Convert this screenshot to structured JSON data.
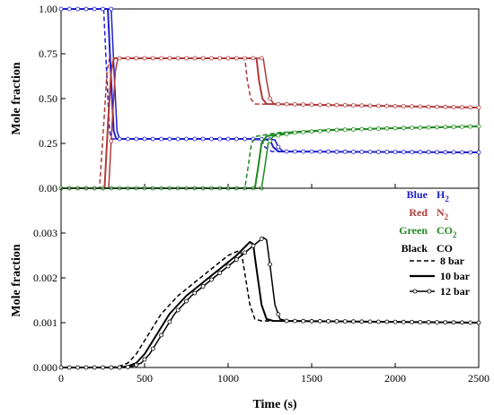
{
  "chart_data": {
    "type": "line",
    "xlabel": "Time (s)",
    "xlim": [
      0,
      2500
    ],
    "x_ticks": [
      "0",
      "500",
      "1000",
      "1500",
      "2000",
      "2500"
    ],
    "panels": [
      {
        "name": "top",
        "ylabel": "Mole fraction",
        "ylim": [
          0,
          1
        ],
        "y_ticks": [
          "0.00",
          "0.25",
          "0.50",
          "0.75",
          "1.00"
        ],
        "series": [
          {
            "gas": "H2",
            "pressure": "8 bar",
            "x": [
              0,
              255,
              275,
              290,
              300,
              1100,
              1200,
              1220,
              1260,
              2500
            ],
            "y": [
              1.0,
              1.0,
              0.6,
              0.32,
              0.275,
              0.275,
              0.27,
              0.23,
              0.205,
              0.2
            ]
          },
          {
            "gas": "H2",
            "pressure": "10 bar",
            "x": [
              0,
              280,
              300,
              315,
              330,
              1150,
              1250,
              1270,
              1300,
              2500
            ],
            "y": [
              1.0,
              1.0,
              0.6,
              0.32,
              0.275,
              0.275,
              0.27,
              0.23,
              0.205,
              0.2
            ]
          },
          {
            "gas": "H2",
            "pressure": "12 bar",
            "x": [
              0,
              300,
              320,
              335,
              350,
              1190,
              1280,
              1300,
              1330,
              2500
            ],
            "y": [
              1.0,
              1.0,
              0.6,
              0.32,
              0.275,
              0.275,
              0.27,
              0.23,
              0.205,
              0.2
            ]
          },
          {
            "gas": "N2",
            "pressure": "8 bar",
            "x": [
              0,
              230,
              255,
              275,
              290,
              1100,
              1115,
              1135,
              1160,
              2500
            ],
            "y": [
              0,
              0,
              0.35,
              0.65,
              0.725,
              0.725,
              0.6,
              0.5,
              0.47,
              0.45
            ]
          },
          {
            "gas": "N2",
            "pressure": "10 bar",
            "x": [
              0,
              260,
              280,
              300,
              315,
              1170,
              1185,
              1205,
              1230,
              2500
            ],
            "y": [
              0,
              0,
              0.35,
              0.65,
              0.725,
              0.725,
              0.6,
              0.5,
              0.47,
              0.45
            ]
          },
          {
            "gas": "N2",
            "pressure": "12 bar",
            "x": [
              0,
              285,
              305,
              325,
              340,
              1210,
              1230,
              1250,
              1275,
              2500
            ],
            "y": [
              0,
              0,
              0.35,
              0.65,
              0.725,
              0.725,
              0.6,
              0.5,
              0.47,
              0.45
            ]
          },
          {
            "gas": "CO2",
            "pressure": "8 bar",
            "x": [
              0,
              1100,
              1120,
              1140,
              1170,
              1300,
              1600,
              2000,
              2500
            ],
            "y": [
              0,
              0,
              0.12,
              0.25,
              0.29,
              0.31,
              0.325,
              0.335,
              0.345
            ]
          },
          {
            "gas": "CO2",
            "pressure": "10 bar",
            "x": [
              0,
              1160,
              1180,
              1200,
              1230,
              1350,
              1600,
              2000,
              2500
            ],
            "y": [
              0,
              0,
              0.12,
              0.25,
              0.29,
              0.31,
              0.325,
              0.335,
              0.345
            ]
          },
          {
            "gas": "CO2",
            "pressure": "12 bar",
            "x": [
              0,
              1200,
              1220,
              1240,
              1270,
              1400,
              1650,
              2000,
              2500
            ],
            "y": [
              0,
              0,
              0.12,
              0.25,
              0.29,
              0.31,
              0.325,
              0.335,
              0.345
            ]
          }
        ]
      },
      {
        "name": "bottom",
        "ylabel": "Mole fraction",
        "ylim": [
          0,
          0.004
        ],
        "y_ticks": [
          "0.000",
          "0.001",
          "0.002",
          "0.003"
        ],
        "series": [
          {
            "gas": "CO",
            "pressure": "8 bar",
            "x": [
              0,
              300,
              350,
              400,
              450,
              500,
              600,
              700,
              800,
              900,
              1000,
              1060,
              1080,
              1100,
              1130,
              1160,
              1200,
              2500
            ],
            "y": [
              0,
              0,
              3e-05,
              0.0001,
              0.0003,
              0.0006,
              0.0012,
              0.0016,
              0.0019,
              0.0022,
              0.0025,
              0.0026,
              0.00255,
              0.0021,
              0.0014,
              0.00108,
              0.00104,
              0.001
            ]
          },
          {
            "gas": "CO",
            "pressure": "10 bar",
            "x": [
              0,
              350,
              400,
              450,
              500,
              550,
              650,
              750,
              850,
              950,
              1050,
              1130,
              1150,
              1170,
              1200,
              1230,
              1270,
              2500
            ],
            "y": [
              0,
              0,
              3e-05,
              0.0001,
              0.0003,
              0.0006,
              0.0012,
              0.0016,
              0.0019,
              0.0022,
              0.0025,
              0.0028,
              0.00275,
              0.0022,
              0.0014,
              0.00108,
              0.00104,
              0.001
            ]
          },
          {
            "gas": "CO",
            "pressure": "12 bar",
            "x": [
              0,
              380,
              430,
              480,
              530,
              580,
              680,
              780,
              880,
              980,
              1080,
              1210,
              1230,
              1250,
              1280,
              1310,
              1350,
              2500
            ],
            "y": [
              0,
              0,
              3e-05,
              0.0001,
              0.0003,
              0.0006,
              0.0012,
              0.0016,
              0.0019,
              0.0022,
              0.0025,
              0.0029,
              0.00285,
              0.0023,
              0.0014,
              0.00108,
              0.00104,
              0.001
            ]
          }
        ]
      }
    ],
    "colors": {
      "H2": "#1f1fd0",
      "N2": "#b03a3a",
      "CO2": "#1f8a1f",
      "CO": "#000000"
    },
    "legend": {
      "placement": "right, between panels",
      "color_keys": [
        {
          "color_name": "Blue",
          "gas_label": "H",
          "sub": "2",
          "gas": "H2"
        },
        {
          "color_name": "Red",
          "gas_label": "N",
          "sub": "2",
          "gas": "N2"
        },
        {
          "color_name": "Green",
          "gas_label": "CO",
          "sub": "2",
          "gas": "CO2"
        },
        {
          "color_name": "Black",
          "gas_label": "CO",
          "sub": "",
          "gas": "CO"
        }
      ],
      "line_keys": [
        {
          "label": "8 bar",
          "style": "dashed"
        },
        {
          "label": "10 bar",
          "style": "solid"
        },
        {
          "label": "12 bar",
          "style": "solid-circles"
        }
      ]
    }
  }
}
